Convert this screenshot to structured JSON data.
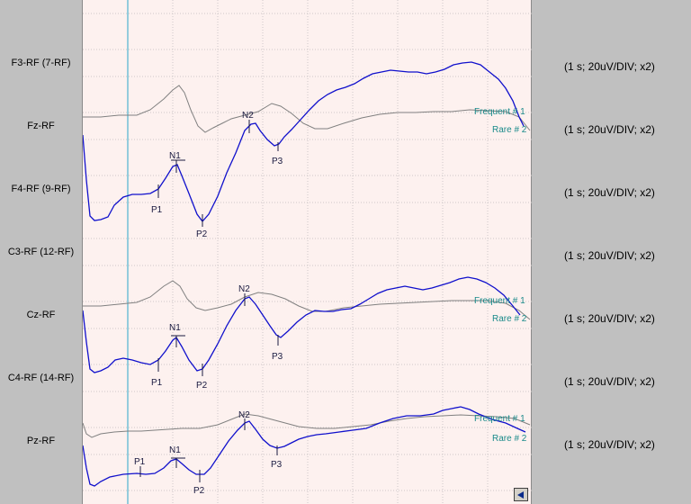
{
  "channels": [
    {
      "label": "F3-RF (7-RF)",
      "scale": "(1 s; 20uV/DIV; x2)"
    },
    {
      "label": "Fz-RF",
      "scale": "(1 s; 20uV/DIV; x2)"
    },
    {
      "label": "F4-RF (9-RF)",
      "scale": "(1 s; 20uV/DIV; x2)"
    },
    {
      "label": "C3-RF (12-RF)",
      "scale": "(1 s; 20uV/DIV; x2)"
    },
    {
      "label": "Cz-RF",
      "scale": "(1 s; 20uV/DIV; x2)"
    },
    {
      "label": "C4-RF (14-RF)",
      "scale": "(1 s; 20uV/DIV; x2)"
    },
    {
      "label": "Pz-RF",
      "scale": "(1 s; 20uV/DIV; x2)"
    }
  ],
  "legend": {
    "frequent": "Frequent # 1",
    "rare": "Rare # 2"
  },
  "peaks": {
    "p1": "P1",
    "n1": "N1",
    "p2": "P2",
    "n2": "N2",
    "p3": "P3"
  },
  "colors": {
    "rare": "#1010cc",
    "frequent": "#808080",
    "cursor": "#2aa6c8",
    "legend": "#1a8a8a"
  },
  "nav": {
    "icon": "left-triangle-icon"
  }
}
